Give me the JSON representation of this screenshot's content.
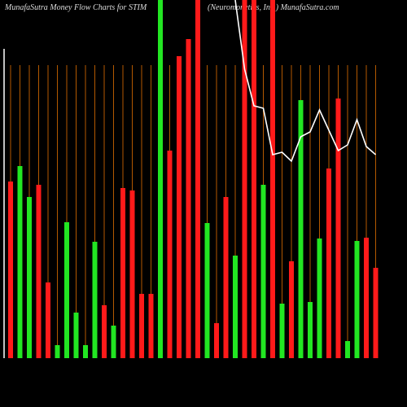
{
  "chart_data": {
    "type": "bar",
    "title": "MunafaSutra  Money Flow  Charts for STIM",
    "subtitle": "(Neuromonetics, Inc.) MunafaSutra.com",
    "categories": [
      null,
      null,
      null,
      null,
      null,
      null,
      null,
      null,
      null,
      null,
      null,
      null,
      null,
      null,
      null,
      null,
      null,
      null,
      null,
      null,
      null,
      null,
      null,
      null,
      null,
      null,
      null,
      null,
      null,
      null,
      null,
      null,
      null,
      null,
      null,
      null,
      null,
      null,
      null,
      null
    ],
    "values": [
      217,
      236,
      198,
      213,
      93,
      16,
      167,
      56,
      16,
      143,
      65,
      40,
      209,
      206,
      79,
      79,
      440,
      255,
      371,
      392,
      440,
      166,
      43,
      198,
      126,
      440,
      440,
      213,
      440,
      67,
      119,
      317,
      69,
      147,
      233,
      319,
      21,
      144,
      148,
      111
    ],
    "colors": [
      "#ff1a1a",
      "#22e622",
      "#22e622",
      "#ff1a1a",
      "#ff1a1a",
      "#22e622",
      "#22e622",
      "#22e622",
      "#22e622",
      "#22e622",
      "#ff1a1a",
      "#22e622",
      "#ff1a1a",
      "#ff1a1a",
      "#ff1a1a",
      "#ff1a1a",
      "#22e622",
      "#ff1a1a",
      "#ff1a1a",
      "#ff1a1a",
      "#ff1a1a",
      "#22e622",
      "#ff1a1a",
      "#ff1a1a",
      "#22e622",
      "#ff1a1a",
      "#ff1a1a",
      "#22e622",
      "#ff1a1a",
      "#22e622",
      "#ff1a1a",
      "#22e622",
      "#22e622",
      "#22e622",
      "#ff1a1a",
      "#ff1a1a",
      "#22e622",
      "#22e622",
      "#ff1a1a",
      "#ff1a1a"
    ],
    "line": {
      "color": "#ffffff",
      "values": [
        null,
        null,
        null,
        null,
        null,
        null,
        null,
        null,
        null,
        null,
        null,
        null,
        null,
        null,
        null,
        null,
        null,
        null,
        null,
        null,
        null,
        null,
        null,
        null,
        440,
        355,
        310,
        307,
        250,
        253,
        242,
        272,
        278,
        305,
        280,
        255,
        262,
        293,
        260,
        250
      ]
    },
    "ylim": [
      0,
      440
    ]
  }
}
